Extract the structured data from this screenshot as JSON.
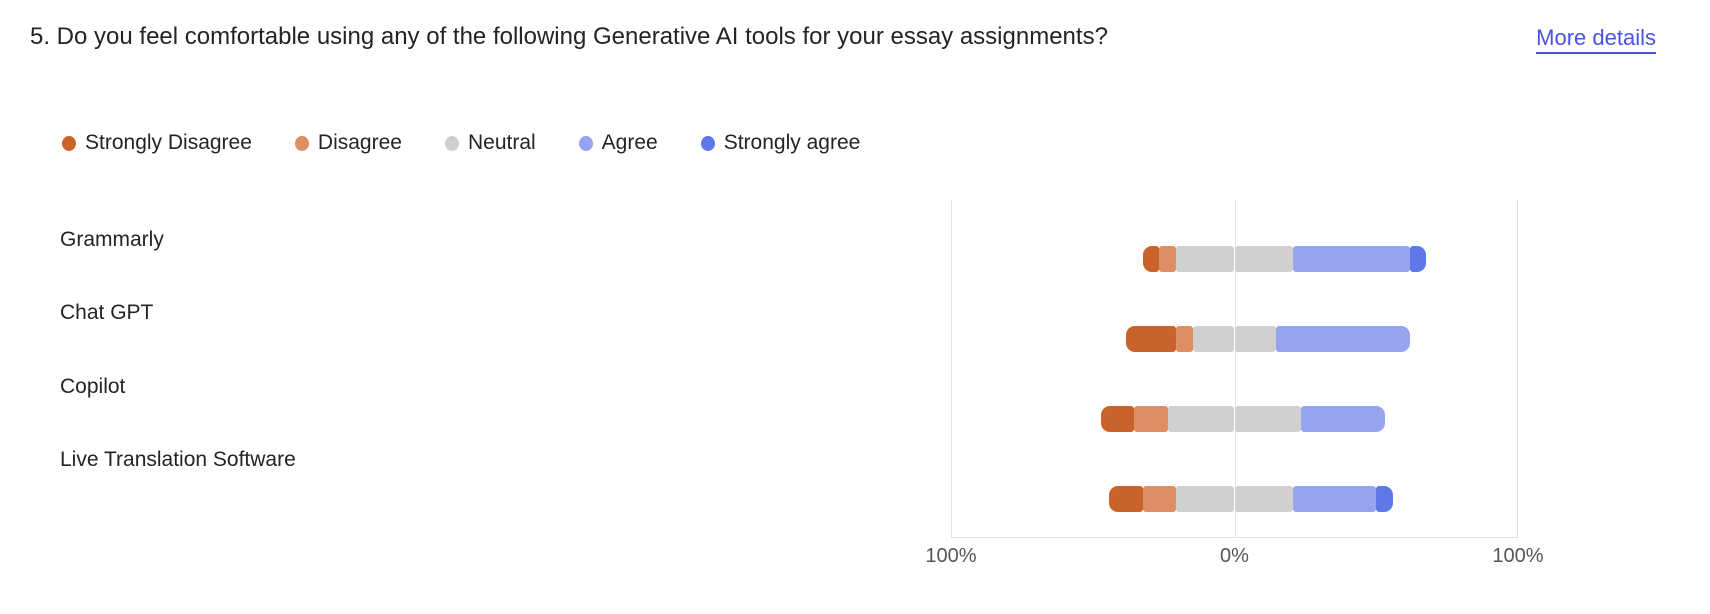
{
  "header": {
    "question": "5. Do you feel comfortable using any of the following Generative AI tools for your essay assignments?",
    "more_details_label": "More details",
    "link_color": "#4A53E1",
    "title_color": "#242424"
  },
  "legend": [
    {
      "label": "Strongly Disagree",
      "color": "#C9632B"
    },
    {
      "label": "Disagree",
      "color": "#DD8E62"
    },
    {
      "label": "Neutral",
      "color": "#D1CFCF"
    },
    {
      "label": "Agree",
      "color": "#96A3EE"
    },
    {
      "label": "Strongly agree",
      "color": "#5F78E8"
    }
  ],
  "chart_data": {
    "type": "bar",
    "subtype": "diverging-stacked-likert",
    "orientation": "horizontal",
    "categories": [
      "Grammarly",
      "Chat GPT",
      "Copilot",
      "Live Translation Software"
    ],
    "series": [
      {
        "name": "Strongly Disagree",
        "color": "#C9632B",
        "values": [
          5.9,
          17.6,
          11.8,
          11.8
        ]
      },
      {
        "name": "Disagree",
        "color": "#DD8E62",
        "values": [
          5.9,
          5.9,
          11.8,
          11.8
        ]
      },
      {
        "name": "Neutral",
        "color": "#D1CFCF",
        "values": [
          41.2,
          29.4,
          47.1,
          41.2
        ]
      },
      {
        "name": "Agree",
        "color": "#96A3EE",
        "values": [
          41.2,
          47.1,
          29.4,
          29.4
        ]
      },
      {
        "name": "Strongly agree",
        "color": "#5F78E8",
        "values": [
          5.9,
          0,
          0,
          5.9
        ]
      }
    ],
    "values_unit": "percent",
    "neutral_split_at_center": true,
    "x_axis": {
      "tick_labels": [
        "100%",
        "0%",
        "100%"
      ],
      "range": [
        -100,
        100
      ],
      "gridline_color": "#E2E2E2"
    },
    "legend_position": "top"
  }
}
